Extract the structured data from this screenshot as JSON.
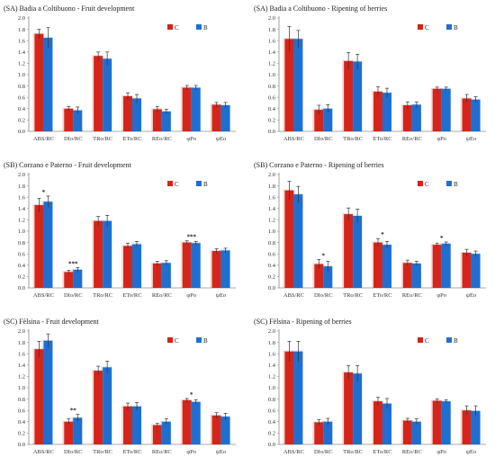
{
  "colors": {
    "C": "#d62418",
    "B": "#1f6fd0",
    "axis": "#8c8c8c",
    "err": "#333333"
  },
  "chart_data": [
    {
      "type": "bar",
      "title": "(SA) Badia a Coltibuono - Fruit development",
      "categories": [
        "ABS/RC",
        "DIo/RC",
        "TRo/RC",
        "ETo/RC",
        "REo/RC",
        "φPo",
        "ψEo"
      ],
      "yticks": [
        "0.0",
        "0.2",
        "0.4",
        "0.6",
        "0.8",
        "1.0",
        "1.2",
        "1.4",
        "1.6",
        "1.8",
        "2.0"
      ],
      "ylim": [
        0,
        2.0
      ],
      "series": [
        {
          "name": "C",
          "values": [
            1.72,
            0.4,
            1.33,
            0.62,
            0.39,
            0.77,
            0.47
          ],
          "errors": [
            0.08,
            0.04,
            0.07,
            0.06,
            0.05,
            0.04,
            0.04
          ]
        },
        {
          "name": "B",
          "values": [
            1.65,
            0.37,
            1.28,
            0.58,
            0.35,
            0.77,
            0.46
          ],
          "errors": [
            0.18,
            0.06,
            0.12,
            0.07,
            0.04,
            0.04,
            0.05
          ]
        }
      ],
      "annotations": [
        "",
        "",
        "",
        "",
        "",
        "",
        ""
      ]
    },
    {
      "type": "bar",
      "title": "(SA) Badia a Coltibuono - Ripening of berries",
      "categories": [
        "ABS/RC",
        "DIo/RC",
        "TRo/RC",
        "ETo/RC",
        "REo/RC",
        "φPo",
        "ψEo"
      ],
      "yticks": [
        "0.0",
        "0.2",
        "0.4",
        "0.6",
        "0.8",
        "1.0",
        "1.2",
        "1.4",
        "1.6",
        "1.8",
        "2.0"
      ],
      "ylim": [
        0,
        2.0
      ],
      "series": [
        {
          "name": "C",
          "values": [
            1.63,
            0.38,
            1.24,
            0.7,
            0.46,
            0.75,
            0.58
          ],
          "errors": [
            0.22,
            0.08,
            0.15,
            0.09,
            0.06,
            0.03,
            0.07
          ]
        },
        {
          "name": "B",
          "values": [
            1.63,
            0.4,
            1.23,
            0.68,
            0.47,
            0.75,
            0.56
          ],
          "errors": [
            0.15,
            0.07,
            0.13,
            0.08,
            0.05,
            0.03,
            0.05
          ]
        }
      ],
      "annotations": [
        "",
        "",
        "",
        "",
        "",
        "",
        ""
      ]
    },
    {
      "type": "bar",
      "title": "(SB) Corzano e Paterno - Fruit development",
      "categories": [
        "ABS/RC",
        "DIo/RC",
        "TRo/RC",
        "ETo/RC",
        "REo/RC",
        "φPo",
        "ψEo"
      ],
      "yticks": [
        "0.0",
        "0.2",
        "0.4",
        "0.6",
        "0.8",
        "1.0",
        "1.2",
        "1.4",
        "1.6",
        "1.8",
        "2.0"
      ],
      "ylim": [
        0,
        2.0
      ],
      "series": [
        {
          "name": "C",
          "values": [
            1.46,
            0.28,
            1.18,
            0.74,
            0.43,
            0.8,
            0.65
          ],
          "errors": [
            0.12,
            0.03,
            0.08,
            0.05,
            0.04,
            0.03,
            0.04
          ]
        },
        {
          "name": "B",
          "values": [
            1.52,
            0.32,
            1.18,
            0.77,
            0.44,
            0.79,
            0.66
          ],
          "errors": [
            0.1,
            0.04,
            0.1,
            0.05,
            0.04,
            0.03,
            0.04
          ]
        }
      ],
      "annotations": [
        "*",
        "***",
        "",
        "",
        "",
        "***",
        ""
      ]
    },
    {
      "type": "bar",
      "title": "(SB) Corzano e Paterno - Ripening of berries",
      "categories": [
        "ABS/RC",
        "DIo/RC",
        "TRo/RC",
        "ETo/RC",
        "REo/RC",
        "φPo",
        "ψEo"
      ],
      "yticks": [
        "0.0",
        "0.2",
        "0.4",
        "0.6",
        "0.8",
        "1.0",
        "1.2",
        "1.4",
        "1.6",
        "1.8",
        "2.0"
      ],
      "ylim": [
        0,
        2.0
      ],
      "series": [
        {
          "name": "C",
          "values": [
            1.72,
            0.42,
            1.3,
            0.8,
            0.44,
            0.76,
            0.62
          ],
          "errors": [
            0.16,
            0.08,
            0.11,
            0.07,
            0.05,
            0.03,
            0.06
          ]
        },
        {
          "name": "B",
          "values": [
            1.65,
            0.38,
            1.27,
            0.76,
            0.43,
            0.78,
            0.6
          ],
          "errors": [
            0.14,
            0.09,
            0.12,
            0.06,
            0.04,
            0.03,
            0.05
          ]
        }
      ],
      "annotations": [
        "",
        "*",
        "",
        "*",
        "",
        "*",
        ""
      ]
    },
    {
      "type": "bar",
      "title": "(SC) Fèlsina - Fruit development",
      "categories": [
        "ABS/RC",
        "DIo/RC",
        "TRo/RC",
        "ETo/RC",
        "REo/RC",
        "φPo",
        "ψEo"
      ],
      "yticks": [
        "0.0",
        "0.2",
        "0.4",
        "0.6",
        "0.8",
        "1.0",
        "1.2",
        "1.4",
        "1.6",
        "1.8",
        "2.0"
      ],
      "ylim": [
        0,
        2.0
      ],
      "series": [
        {
          "name": "C",
          "values": [
            1.68,
            0.4,
            1.3,
            0.67,
            0.34,
            0.78,
            0.51
          ],
          "errors": [
            0.14,
            0.05,
            0.08,
            0.06,
            0.03,
            0.03,
            0.05
          ]
        },
        {
          "name": "B",
          "values": [
            1.83,
            0.47,
            1.36,
            0.67,
            0.4,
            0.75,
            0.49
          ],
          "errors": [
            0.12,
            0.06,
            0.11,
            0.07,
            0.05,
            0.04,
            0.06
          ]
        }
      ],
      "annotations": [
        "",
        "**",
        "",
        "",
        "",
        "*",
        ""
      ]
    },
    {
      "type": "bar",
      "title": "(SC) Fèlsina - Ripening of berries",
      "categories": [
        "ABS/RC",
        "DIo/RC",
        "TRo/RC",
        "ETo/RC",
        "REo/RC",
        "φPo",
        "ψEo"
      ],
      "yticks": [
        "0.0",
        "0.2",
        "0.4",
        "0.6",
        "0.8",
        "1.0",
        "1.2",
        "1.4",
        "1.6",
        "1.8",
        "2.0"
      ],
      "ylim": [
        0,
        2.0
      ],
      "series": [
        {
          "name": "C",
          "values": [
            1.64,
            0.39,
            1.27,
            0.76,
            0.42,
            0.77,
            0.6
          ],
          "errors": [
            0.18,
            0.05,
            0.12,
            0.07,
            0.04,
            0.03,
            0.08
          ]
        },
        {
          "name": "B",
          "values": [
            1.64,
            0.4,
            1.25,
            0.72,
            0.4,
            0.76,
            0.59
          ],
          "errors": [
            0.18,
            0.06,
            0.14,
            0.09,
            0.05,
            0.03,
            0.09
          ]
        }
      ],
      "annotations": [
        "",
        "",
        "",
        "",
        "",
        "",
        ""
      ]
    }
  ]
}
